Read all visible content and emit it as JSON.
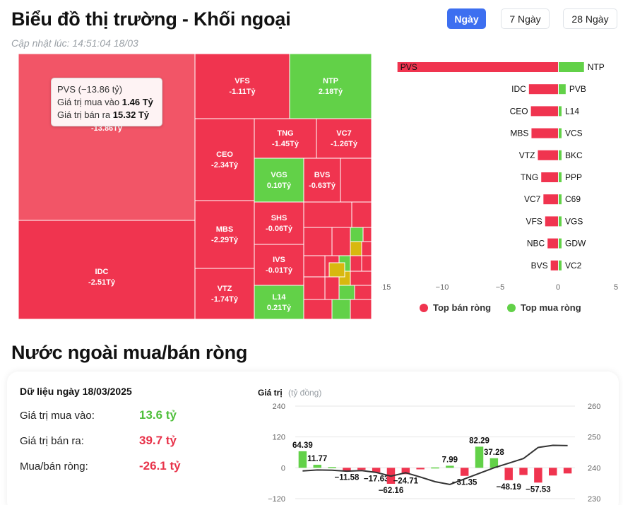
{
  "header": {
    "title": "Biểu đồ thị trường - Khối ngoại",
    "updated": "Cập nhật lúc: 14:51:04 18/03",
    "ranges": [
      {
        "label": "Ngày",
        "active": true
      },
      {
        "label": "7 Ngày",
        "active": false
      },
      {
        "label": "28 Ngày",
        "active": false
      }
    ]
  },
  "colors": {
    "sell": "#f0344f",
    "sell_light": "#f25567",
    "buy": "#62d148",
    "neutral": "#d8b80f",
    "text_dark": "#111111",
    "axis": "#666666"
  },
  "tooltip": {
    "title": "PVS (−13.86 tỷ)",
    "buy_label": "Giá trị mua vào",
    "buy_value": "1.46 Tỷ",
    "sell_label": "Giá trị bán ra",
    "sell_value": "15.32 Tỷ"
  },
  "treemap": {
    "tiles": [
      {
        "code": "PVS",
        "value": "-13.86Tỷ",
        "side": "sell",
        "highlight": true
      },
      {
        "code": "IDC",
        "value": "-2.51Tỷ",
        "side": "sell"
      },
      {
        "code": "VFS",
        "value": "-1.11Tỷ",
        "side": "sell"
      },
      {
        "code": "NTP",
        "value": "2.18Tỷ",
        "side": "buy"
      },
      {
        "code": "CEO",
        "value": "-2.34Tỷ",
        "side": "sell"
      },
      {
        "code": "MBS",
        "value": "-2.29Tỷ",
        "side": "sell"
      },
      {
        "code": "VTZ",
        "value": "-1.74Tỷ",
        "side": "sell"
      },
      {
        "code": "TNG",
        "value": "-1.45Tỷ",
        "side": "sell"
      },
      {
        "code": "VC7",
        "value": "-1.26Tỷ",
        "side": "sell"
      },
      {
        "code": "VGS",
        "value": "0.10Tỷ",
        "side": "buy"
      },
      {
        "code": "BVS",
        "value": "-0.63Tỷ",
        "side": "sell"
      },
      {
        "code": "SHS",
        "value": "-0.06Tỷ",
        "side": "sell"
      },
      {
        "code": "IVS",
        "value": "-0.01Tỷ",
        "side": "sell"
      },
      {
        "code": "L14",
        "value": "0.21Tỷ",
        "side": "buy"
      }
    ]
  },
  "top_chart": {
    "x_ticks": [
      "−15",
      "−10",
      "−5",
      "0",
      "5"
    ],
    "legend": [
      {
        "label": "Top bán ròng",
        "color": "#f0344f"
      },
      {
        "label": "Top mua ròng",
        "color": "#62d148"
      }
    ]
  },
  "net_section": {
    "title": "Nước ngoài mua/bán ròng",
    "date_label": "Dữ liệu ngày 18/03/2025",
    "stats": [
      {
        "label": "Giá trị mua vào:",
        "value": "13.6 tỷ",
        "tone": "green"
      },
      {
        "label": "Giá trị bán ra:",
        "value": "39.7 tỷ",
        "tone": "red"
      },
      {
        "label": "Mua/bán ròng:",
        "value": "-26.1 tỷ",
        "tone": "red"
      }
    ],
    "axis_title": "Giá trị",
    "axis_unit": "(tỷ đồng)"
  },
  "chart_data": [
    {
      "type": "bar",
      "orientation": "horizontal",
      "title": "",
      "xlim": [
        -15,
        5
      ],
      "x_ticks": [
        -15,
        -10,
        -5,
        0,
        5
      ],
      "series": [
        {
          "name": "Top bán ròng",
          "categories": [
            "PVS",
            "IDC",
            "CEO",
            "MBS",
            "VTZ",
            "TNG",
            "VC7",
            "VFS",
            "NBC",
            "BVS"
          ],
          "values": [
            -13.86,
            -2.51,
            -2.34,
            -2.29,
            -1.74,
            -1.45,
            -1.26,
            -1.11,
            -0.9,
            -0.63
          ]
        },
        {
          "name": "Top mua ròng",
          "categories": [
            "NTP",
            "PVB",
            "L14",
            "VCS",
            "BKC",
            "PPP",
            "C69",
            "VGS",
            "GDW",
            "VC2"
          ],
          "values": [
            2.18,
            0.6,
            0.21,
            0.18,
            0.16,
            0.14,
            0.12,
            0.1,
            0.08,
            0.06
          ]
        }
      ],
      "legend_position": "bottom"
    },
    {
      "type": "bar",
      "title": "",
      "ylabel": "Giá trị (tỷ đồng)",
      "ylim": [
        -120,
        240
      ],
      "y_ticks": [
        -120,
        0,
        120,
        240
      ],
      "y2lim": [
        230,
        260
      ],
      "y2_ticks": [
        230,
        240,
        250,
        260
      ],
      "values": [
        64.39,
        11.77,
        2.5,
        -11.58,
        -8.0,
        -17.63,
        -62.16,
        -24.71,
        -6.0,
        1.5,
        7.99,
        -31.35,
        82.29,
        37.28,
        -48.19,
        -28.0,
        -57.53,
        -30.0,
        -22.0
      ],
      "value_labels": [
        "64.39",
        "11.77",
        "",
        "−11.58",
        "",
        "−17.63",
        "−62.16",
        "−24.71",
        "",
        "",
        "7.99",
        "−31.35",
        "82.29",
        "37.28",
        "−48.19",
        "",
        "−57.53",
        "",
        ""
      ],
      "line": [
        239.0,
        239.3,
        239.2,
        238.9,
        239.1,
        238.5,
        237.3,
        238.4,
        237.0,
        235.5,
        234.6,
        236.4,
        238.2,
        240.0,
        241.5,
        243.0,
        246.6,
        247.3,
        247.2
      ],
      "grid": true
    }
  ]
}
